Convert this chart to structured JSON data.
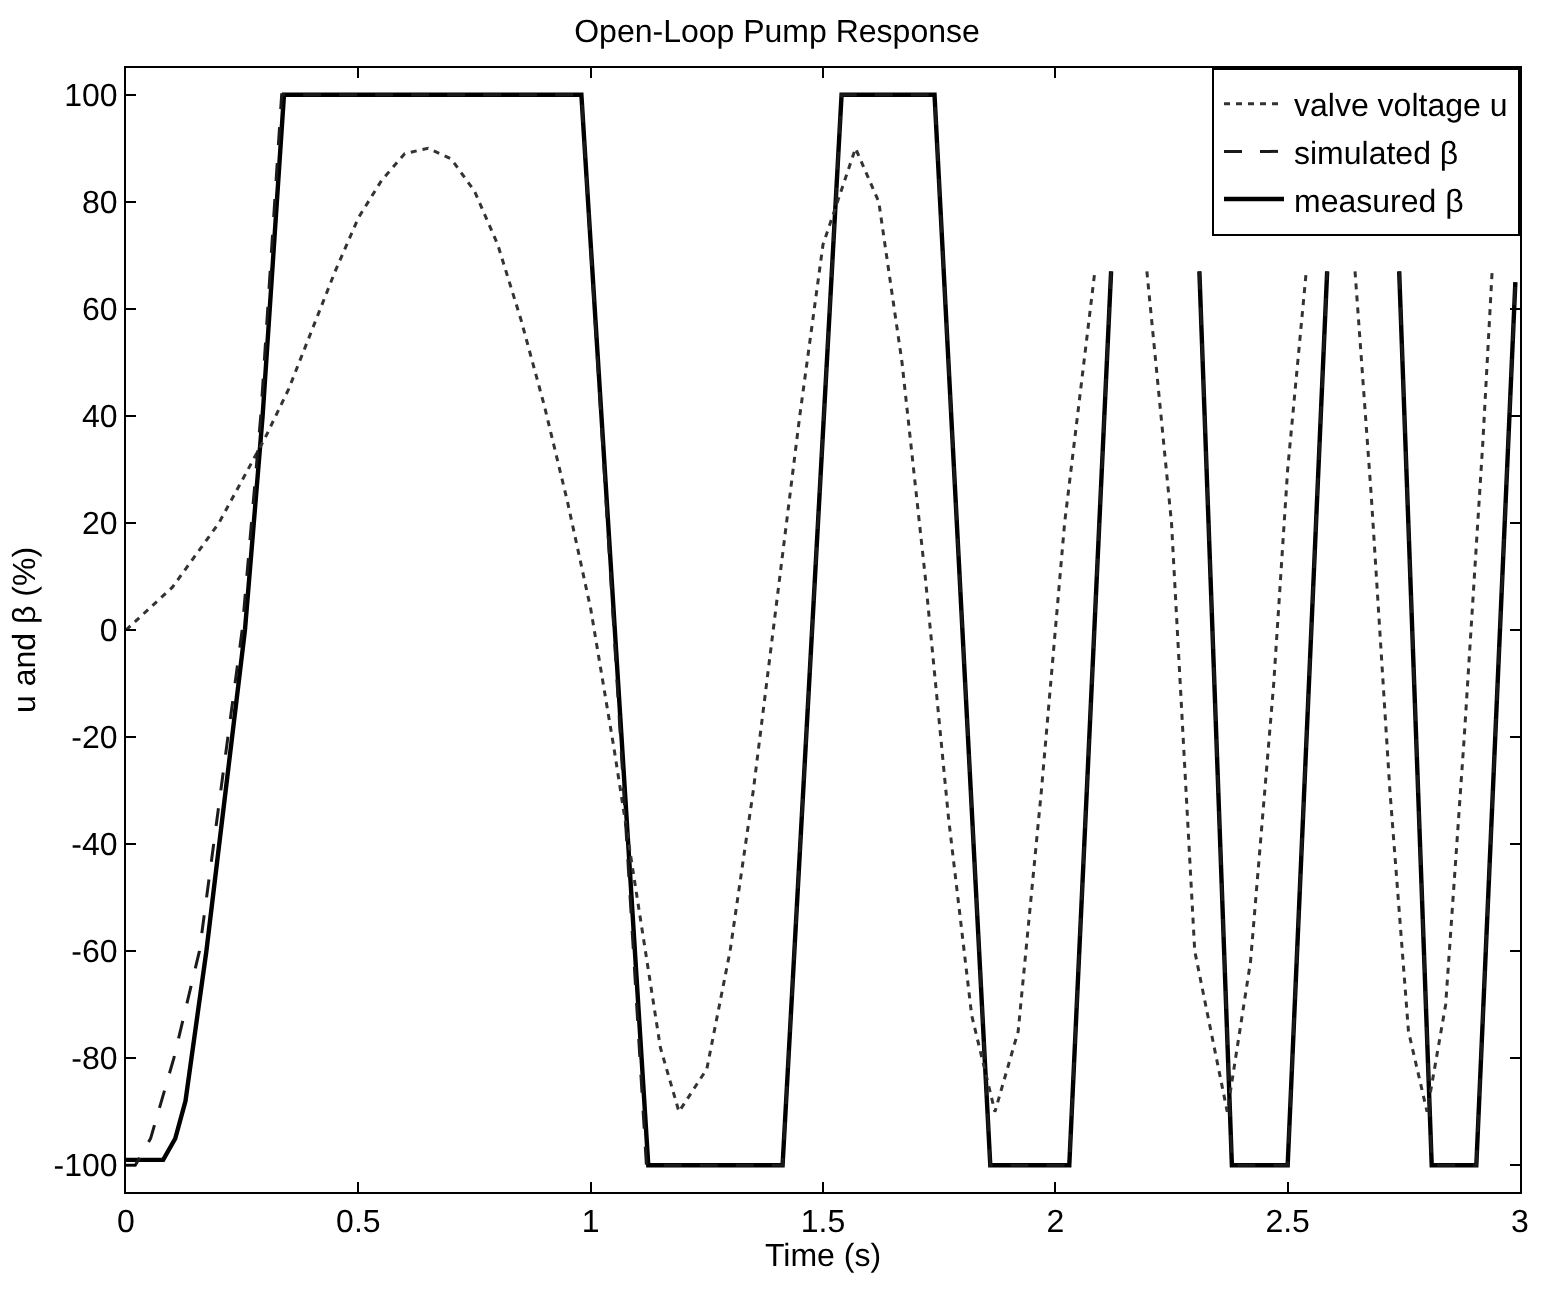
{
  "chart_data": {
    "type": "line",
    "title": "Open-Loop Pump Response",
    "xlabel": "Time (s)",
    "ylabel": "u and β (%)",
    "xlim": [
      0,
      3
    ],
    "xticks": [
      0,
      0.5,
      1,
      1.5,
      2,
      2.5,
      3
    ],
    "ylim": [
      -105,
      105
    ],
    "yticks": [
      -100,
      -80,
      -60,
      -40,
      -20,
      0,
      20,
      40,
      60,
      80,
      100
    ],
    "grid": false,
    "legend": "top right",
    "marker": "none",
    "series": [
      {
        "name": "valve voltage u",
        "color": "#333333",
        "line_style": "dotted",
        "x": [
          0,
          0.1,
          0.2,
          0.3,
          0.35,
          0.4,
          0.45,
          0.5,
          0.55,
          0.6,
          0.65,
          0.7,
          0.75,
          0.8,
          0.85,
          0.9,
          0.95,
          1.0,
          1.05,
          1.1,
          1.15,
          1.19,
          1.25,
          1.3,
          1.35,
          1.4,
          1.45,
          1.5,
          1.57,
          1.62,
          1.67,
          1.72,
          1.77,
          1.82,
          1.87,
          1.92,
          1.97,
          2.02,
          2.085,
          2.14,
          2.197,
          2.25,
          2.3,
          2.37,
          2.42,
          2.47,
          2.5,
          2.54,
          2.59,
          2.645,
          2.68,
          2.72,
          2.76,
          2.8,
          2.84,
          2.88,
          2.92,
          2.94
        ],
        "values": [
          0,
          8,
          20,
          36,
          45,
          56,
          67,
          77,
          84,
          89,
          90,
          88,
          82,
          72,
          58,
          42,
          24,
          4,
          -22,
          -50,
          -78,
          -90,
          -82,
          -60,
          -30,
          5,
          40,
          72,
          90,
          80,
          50,
          10,
          -35,
          -72,
          -90,
          -75,
          -30,
          20,
          67,
          null,
          67,
          20,
          -60,
          -90,
          -62,
          -10,
          30,
          67,
          null,
          67,
          25,
          -30,
          -75,
          -90,
          -70,
          -20,
          35,
          67
        ]
      },
      {
        "name": "simulated β",
        "color": "#1a1a1a",
        "line_style": "dashed",
        "x": [
          0,
          0.02,
          0.053,
          0.103,
          0.158,
          0.25,
          0.29,
          0.335,
          0.98,
          1.12,
          1.413,
          1.54,
          1.74,
          1.86,
          2.03,
          2.12,
          2.2,
          2.31,
          2.38,
          2.5,
          2.585,
          2.66,
          2.74,
          2.81,
          2.906,
          2.99
        ],
        "values": [
          -100,
          -100,
          -95,
          -80,
          -60,
          0,
          40,
          100,
          100,
          -100,
          -100,
          100,
          100,
          -100,
          -100,
          67,
          null,
          67,
          -100,
          -100,
          67,
          null,
          67,
          -100,
          -100,
          65
        ]
      },
      {
        "name": "measured β",
        "color": "#000000",
        "line_style": "solid",
        "x": [
          0,
          0.08,
          0.106,
          0.128,
          0.173,
          0.256,
          0.294,
          0.34,
          0.98,
          1.124,
          1.413,
          1.54,
          1.74,
          1.86,
          2.03,
          2.12,
          2.2,
          2.31,
          2.38,
          2.5,
          2.585,
          2.66,
          2.74,
          2.81,
          2.906,
          2.99
        ],
        "values": [
          -99,
          -99,
          -95,
          -88,
          -60,
          0,
          40,
          100,
          100,
          -100,
          -100,
          100,
          100,
          -100,
          -100,
          67,
          null,
          67,
          -100,
          -100,
          67,
          null,
          67,
          -100,
          -100,
          65
        ]
      }
    ]
  }
}
